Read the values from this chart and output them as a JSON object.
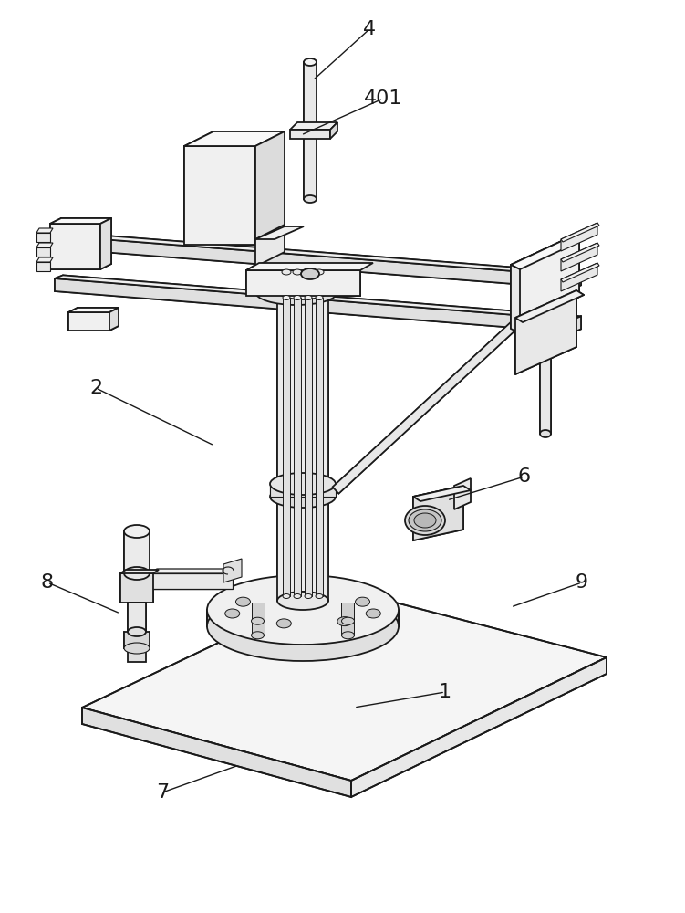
{
  "fig_width": 7.51,
  "fig_height": 10.0,
  "dpi": 100,
  "bg_color": "#ffffff",
  "lc": "#1a1a1a",
  "lw": 1.3,
  "annotations": [
    [
      "4",
      405,
      32,
      343,
      88
    ],
    [
      "401",
      420,
      108,
      330,
      148
    ],
    [
      "2",
      105,
      425,
      235,
      488
    ],
    [
      "6",
      575,
      522,
      490,
      548
    ],
    [
      "8",
      52,
      638,
      132,
      672
    ],
    [
      "1",
      488,
      758,
      388,
      775
    ],
    [
      "7",
      178,
      868,
      262,
      838
    ],
    [
      "9",
      638,
      638,
      560,
      665
    ]
  ]
}
